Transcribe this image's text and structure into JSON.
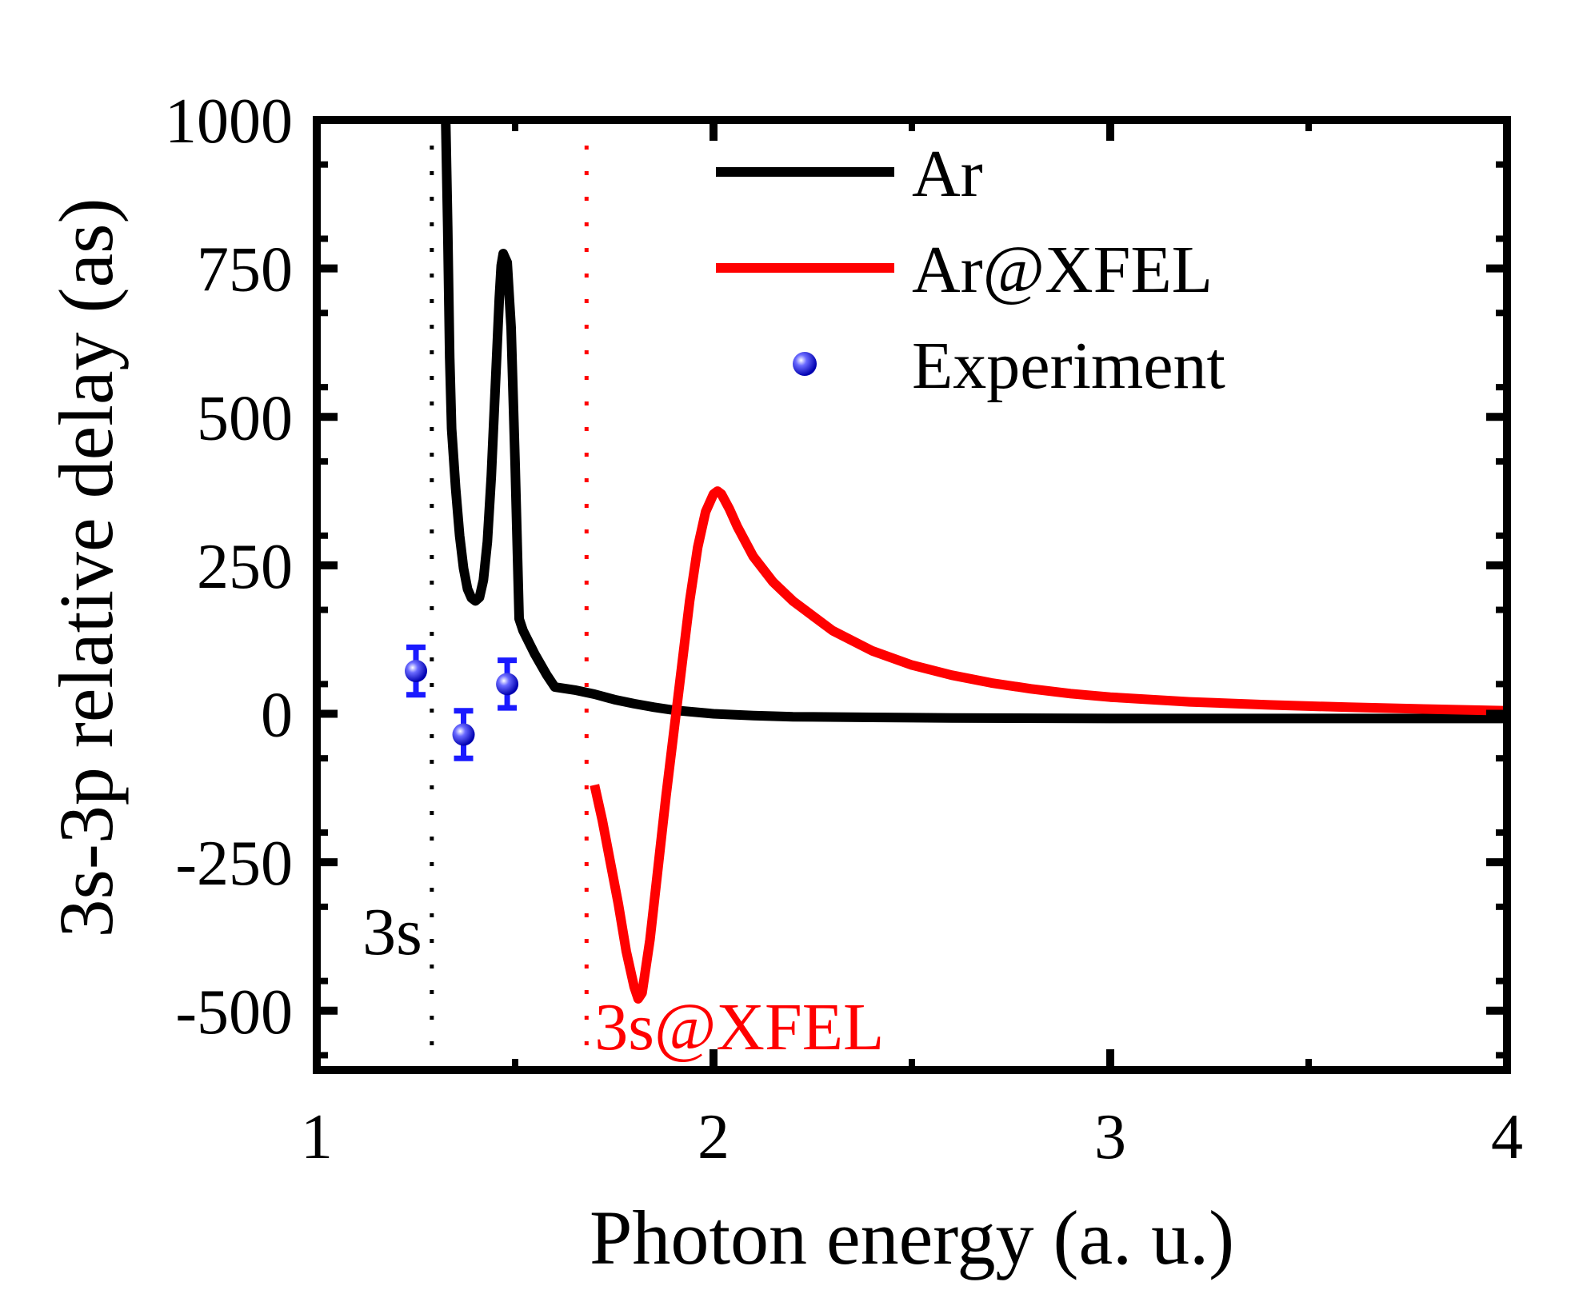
{
  "chart_data": {
    "type": "line",
    "title": "",
    "xlabel": "Photon energy (a. u.)",
    "ylabel": "3s-3p relative delay (as)",
    "xlim": [
      1,
      4
    ],
    "ylim": [
      -600,
      1000
    ],
    "x_ticks": [
      1,
      2,
      3,
      4
    ],
    "x_tick_labels": [
      "1",
      "2",
      "3",
      "4"
    ],
    "y_ticks": [
      -500,
      -250,
      0,
      250,
      500,
      750,
      1000
    ],
    "y_tick_labels": [
      "-500",
      "-250",
      "0",
      "250",
      "500",
      "750",
      "1000"
    ],
    "grid": false,
    "legend_position": "top-right",
    "series": [
      {
        "name": "Ar",
        "color": "#000000",
        "points": [
          [
            1.325,
            1000
          ],
          [
            1.33,
            820
          ],
          [
            1.335,
            600
          ],
          [
            1.34,
            480
          ],
          [
            1.35,
            380
          ],
          [
            1.36,
            300
          ],
          [
            1.37,
            245
          ],
          [
            1.38,
            210
          ],
          [
            1.39,
            195
          ],
          [
            1.4,
            190
          ],
          [
            1.41,
            196
          ],
          [
            1.42,
            225
          ],
          [
            1.43,
            290
          ],
          [
            1.44,
            400
          ],
          [
            1.45,
            550
          ],
          [
            1.46,
            700
          ],
          [
            1.465,
            755
          ],
          [
            1.47,
            775
          ],
          [
            1.48,
            760
          ],
          [
            1.49,
            650
          ],
          [
            1.5,
            420
          ],
          [
            1.51,
            160
          ],
          [
            1.52,
            140
          ],
          [
            1.55,
            100
          ],
          [
            1.58,
            65
          ],
          [
            1.6,
            45
          ],
          [
            1.65,
            40
          ],
          [
            1.7,
            33
          ],
          [
            1.75,
            24
          ],
          [
            1.8,
            17
          ],
          [
            1.85,
            11
          ],
          [
            1.9,
            6
          ],
          [
            2.0,
            0
          ],
          [
            2.1,
            -3
          ],
          [
            2.2,
            -5
          ],
          [
            2.4,
            -6
          ],
          [
            2.6,
            -7
          ],
          [
            3.0,
            -8
          ],
          [
            3.5,
            -8
          ],
          [
            4.0,
            -8
          ]
        ]
      },
      {
        "name": "Ar@XFEL",
        "color": "#ff0000",
        "points": [
          [
            1.7,
            -120
          ],
          [
            1.72,
            -180
          ],
          [
            1.74,
            -250
          ],
          [
            1.76,
            -320
          ],
          [
            1.78,
            -400
          ],
          [
            1.8,
            -460
          ],
          [
            1.81,
            -480
          ],
          [
            1.82,
            -470
          ],
          [
            1.84,
            -380
          ],
          [
            1.86,
            -260
          ],
          [
            1.88,
            -140
          ],
          [
            1.9,
            -30
          ],
          [
            1.92,
            80
          ],
          [
            1.94,
            190
          ],
          [
            1.96,
            280
          ],
          [
            1.98,
            340
          ],
          [
            2.0,
            370
          ],
          [
            2.01,
            375
          ],
          [
            2.02,
            370
          ],
          [
            2.04,
            345
          ],
          [
            2.06,
            315
          ],
          [
            2.1,
            265
          ],
          [
            2.15,
            222
          ],
          [
            2.2,
            190
          ],
          [
            2.3,
            140
          ],
          [
            2.4,
            106
          ],
          [
            2.5,
            82
          ],
          [
            2.6,
            65
          ],
          [
            2.7,
            52
          ],
          [
            2.8,
            42
          ],
          [
            2.9,
            34
          ],
          [
            3.0,
            28
          ],
          [
            3.2,
            20
          ],
          [
            3.4,
            15
          ],
          [
            3.6,
            11
          ],
          [
            3.8,
            8
          ],
          [
            4.0,
            5
          ]
        ]
      },
      {
        "name": "Experiment",
        "color": "#1a1aff",
        "points": [
          [
            1.25,
            72
          ],
          [
            1.37,
            -35
          ],
          [
            1.48,
            50
          ]
        ],
        "errors": [
          40,
          40,
          40
        ]
      }
    ],
    "vlines": [
      {
        "x": 1.29,
        "label": "3s",
        "color": "#000000"
      },
      {
        "x": 1.68,
        "label": "3s@XFEL",
        "color": "#ff0000"
      }
    ]
  }
}
